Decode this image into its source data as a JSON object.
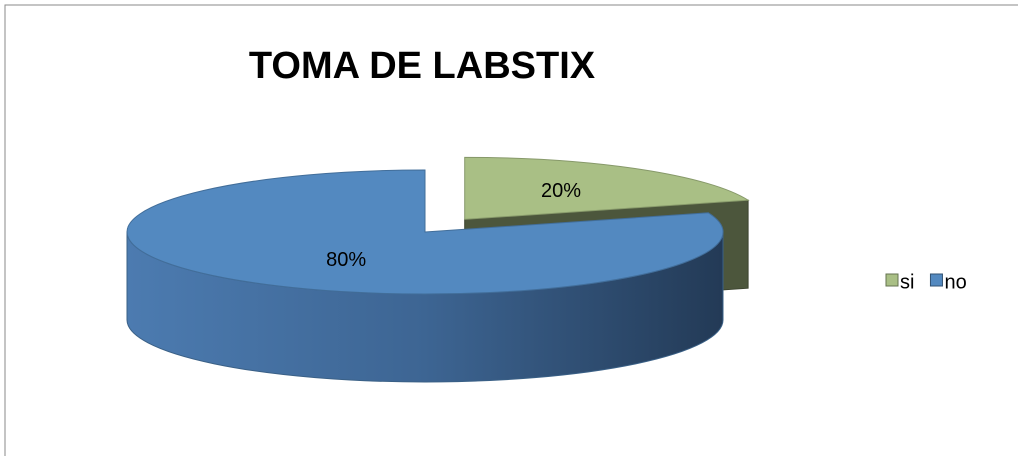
{
  "chart_data": {
    "type": "pie",
    "title": "TOMA DE LABSTIX",
    "categories": [
      "si",
      "no"
    ],
    "values": [
      20,
      80
    ],
    "value_labels": [
      "20%",
      "80%"
    ],
    "colors": [
      "#a9bf85",
      "#5389c0"
    ],
    "legend": "right"
  }
}
